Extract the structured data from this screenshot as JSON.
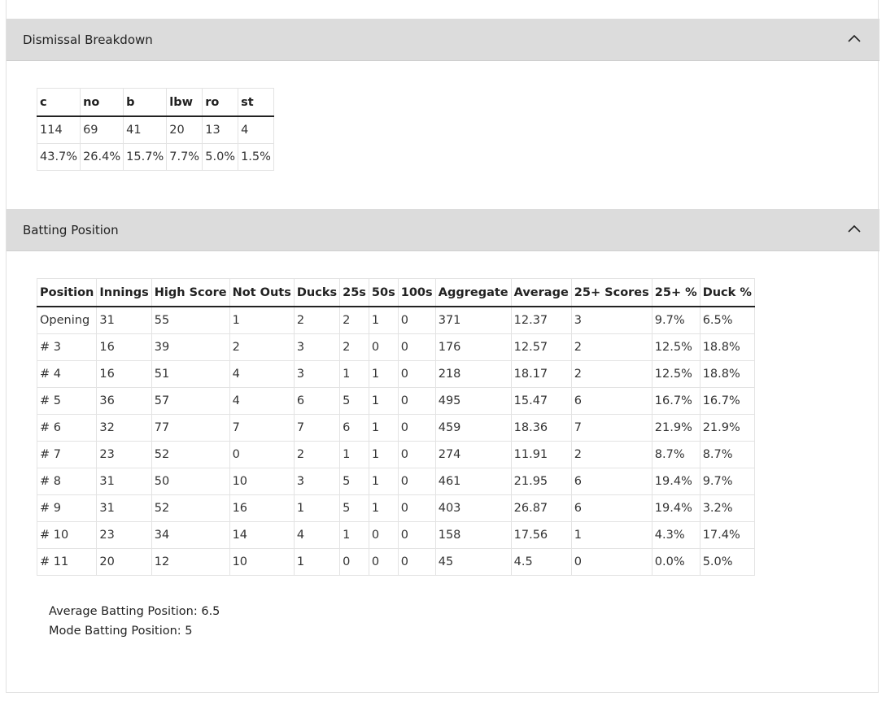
{
  "dismissal": {
    "title": "Dismissal Breakdown",
    "headers": [
      "c",
      "no",
      "b",
      "lbw",
      "ro",
      "st"
    ],
    "rows": [
      [
        "114",
        "69",
        "41",
        "20",
        "13",
        "4"
      ],
      [
        "43.7%",
        "26.4%",
        "15.7%",
        "7.7%",
        "5.0%",
        "1.5%"
      ]
    ]
  },
  "batting": {
    "title": "Batting Position",
    "headers": [
      "Position",
      "Innings",
      "High Score",
      "Not Outs",
      "Ducks",
      "25s",
      "50s",
      "100s",
      "Aggregate",
      "Average",
      "25+ Scores",
      "25+ %",
      "Duck %"
    ],
    "rows": [
      [
        "Opening",
        "31",
        "55",
        "1",
        "2",
        "2",
        "1",
        "0",
        "371",
        "12.37",
        "3",
        "9.7%",
        "6.5%"
      ],
      [
        "# 3",
        "16",
        "39",
        "2",
        "3",
        "2",
        "0",
        "0",
        "176",
        "12.57",
        "2",
        "12.5%",
        "18.8%"
      ],
      [
        "# 4",
        "16",
        "51",
        "4",
        "3",
        "1",
        "1",
        "0",
        "218",
        "18.17",
        "2",
        "12.5%",
        "18.8%"
      ],
      [
        "# 5",
        "36",
        "57",
        "4",
        "6",
        "5",
        "1",
        "0",
        "495",
        "15.47",
        "6",
        "16.7%",
        "16.7%"
      ],
      [
        "# 6",
        "32",
        "77",
        "7",
        "7",
        "6",
        "1",
        "0",
        "459",
        "18.36",
        "7",
        "21.9%",
        "21.9%"
      ],
      [
        "# 7",
        "23",
        "52",
        "0",
        "2",
        "1",
        "1",
        "0",
        "274",
        "11.91",
        "2",
        "8.7%",
        "8.7%"
      ],
      [
        "# 8",
        "31",
        "50",
        "10",
        "3",
        "5",
        "1",
        "0",
        "461",
        "21.95",
        "6",
        "19.4%",
        "9.7%"
      ],
      [
        "# 9",
        "31",
        "52",
        "16",
        "1",
        "5",
        "1",
        "0",
        "403",
        "26.87",
        "6",
        "19.4%",
        "3.2%"
      ],
      [
        "# 10",
        "23",
        "34",
        "14",
        "4",
        "1",
        "0",
        "0",
        "158",
        "17.56",
        "1",
        "4.3%",
        "17.4%"
      ],
      [
        "# 11",
        "20",
        "12",
        "10",
        "1",
        "0",
        "0",
        "0",
        "45",
        "4.5",
        "0",
        "0.0%",
        "5.0%"
      ]
    ],
    "summary": {
      "average": "Average Batting Position: 6.5",
      "mode": "Mode Batting Position: 5"
    }
  },
  "icons": {
    "collapse": "chevron-up-icon"
  }
}
